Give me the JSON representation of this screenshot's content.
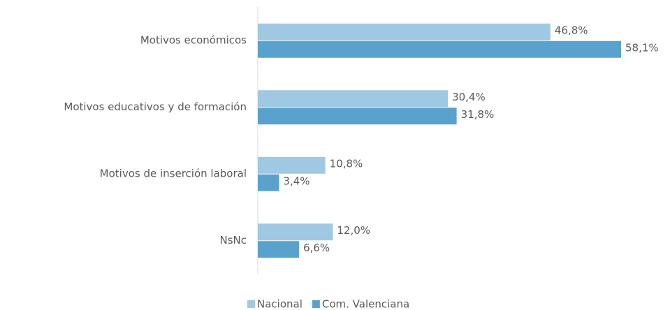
{
  "chart_data": {
    "type": "bar",
    "orientation": "horizontal",
    "categories": [
      "Motivos económicos",
      "Motivos educativos y de formación",
      "Motivos de inserción laboral",
      "NsNc"
    ],
    "series": [
      {
        "name": "Nacional",
        "color": "#9fc9e2",
        "values": [
          46.8,
          30.4,
          10.8,
          12.0
        ],
        "value_labels": [
          "46,8%",
          "30,4%",
          "10,8%",
          "12,0%"
        ]
      },
      {
        "name": "Com. Valenciana",
        "color": "#5aa2ce",
        "values": [
          58.1,
          31.8,
          3.4,
          6.6
        ],
        "value_labels": [
          "58,1%",
          "31,8%",
          "3,4%",
          "6,6%"
        ]
      }
    ],
    "legend": "bottom"
  }
}
